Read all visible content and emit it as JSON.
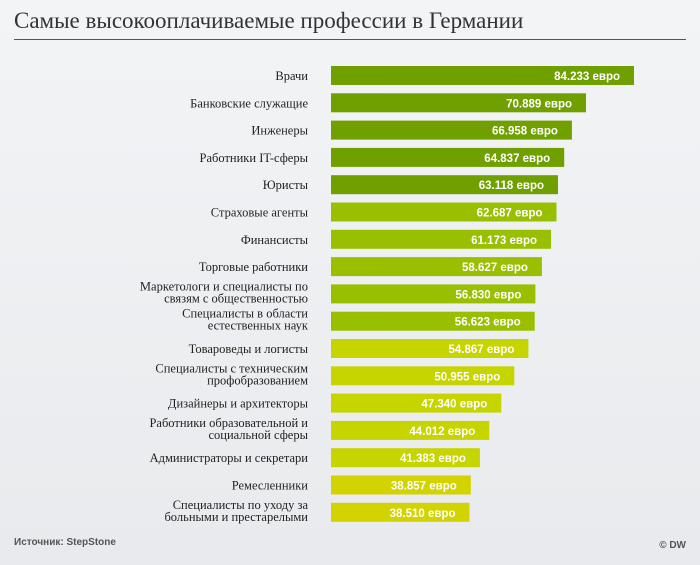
{
  "title": "Самые высокооплачиваемые профессии в Германии",
  "source": "Источник: StepStone",
  "credit": "© DW",
  "colors": {
    "dark_green": "#6fa000",
    "mid_green": "#98bf00",
    "lime": "#c6d400",
    "yellow_green": "#d2d300",
    "bar_text": "#ffffff"
  },
  "chart_data": {
    "type": "bar",
    "orientation": "horizontal",
    "title": "Самые высокооплачиваемые профессии в Германии",
    "unit": "евро",
    "categories": [
      [
        "Врачи"
      ],
      [
        "Банковские служащие"
      ],
      [
        "Инженеры"
      ],
      [
        "Работники IT-сферы"
      ],
      [
        "Юристы"
      ],
      [
        "Страховые агенты"
      ],
      [
        "Финансисты"
      ],
      [
        "Торговые работники"
      ],
      [
        "Маркетологи и специалисты по",
        "связям с общественностью"
      ],
      [
        "Специалисты в области",
        "естественных наук"
      ],
      [
        "Товароведы и логисты"
      ],
      [
        "Специалисты с техническим",
        "профобразованием"
      ],
      [
        "Дизайнеры и архитекторы"
      ],
      [
        "Работники образовательной и",
        "социальной сферы"
      ],
      [
        "Администраторы и секретари"
      ],
      [
        "Ремесленники"
      ],
      [
        "Специалисты по уходу за",
        "больными и престарелыми"
      ]
    ],
    "values": [
      84233,
      70889,
      66958,
      64837,
      63118,
      62687,
      61173,
      58627,
      56830,
      56623,
      54867,
      50955,
      47340,
      44012,
      41383,
      38857,
      38510
    ],
    "value_labels": [
      "84.233 евро",
      "70.889 евро",
      "66.958 евро",
      "64.837 евро",
      "63.118 евро",
      "62.687 евро",
      "61.173 евро",
      "58.627 евро",
      "56.830 евро",
      "56.623 евро",
      "54.867 евро",
      "50.955 евро",
      "47.340 евро",
      "44.012 евро",
      "41.383 евро",
      "38.857 евро",
      "38.510 евро"
    ],
    "bar_colors": [
      "dark_green",
      "dark_green",
      "dark_green",
      "dark_green",
      "dark_green",
      "mid_green",
      "mid_green",
      "mid_green",
      "mid_green",
      "mid_green",
      "lime",
      "lime",
      "lime",
      "lime",
      "lime",
      "yellow_green",
      "yellow_green"
    ],
    "grid": false,
    "legend": "none"
  }
}
